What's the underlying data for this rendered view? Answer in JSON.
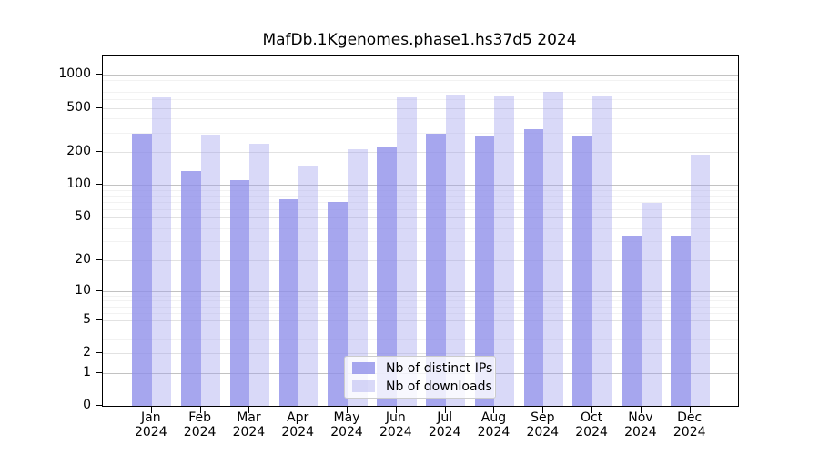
{
  "figure": {
    "background_color": "#ffffff",
    "text_color": "#000000"
  },
  "chart_data": {
    "type": "bar",
    "title": "MafDb.1Kgenomes.phase1.hs37d5 2024",
    "categories": [
      "Jan 2024",
      "Feb 2024",
      "Mar 2024",
      "Apr 2024",
      "May 2024",
      "Jun 2024",
      "Jul 2024",
      "Aug 2024",
      "Sep 2024",
      "Oct 2024",
      "Nov 2024",
      "Dec 2024"
    ],
    "series": [
      {
        "name": "Nb of distinct IPs",
        "color": "#8d8de9",
        "alpha": 0.78,
        "legend_color": "#a6a6ee",
        "values": [
          290,
          134,
          110,
          73,
          70,
          220,
          290,
          283,
          320,
          278,
          34,
          34
        ]
      },
      {
        "name": "Nb of downloads",
        "color": "#a0a0ed",
        "alpha": 0.4,
        "legend_color": "#d9d9f8",
        "values": [
          620,
          285,
          235,
          150,
          210,
          625,
          665,
          655,
          705,
          640,
          68,
          187
        ]
      }
    ],
    "xlabel": "",
    "ylabel": "",
    "yscale": "log1p",
    "yticks": [
      0,
      1,
      2,
      5,
      10,
      20,
      50,
      100,
      200,
      500,
      1000
    ],
    "ylim": [
      0,
      1500
    ],
    "grid": "on",
    "legend_position": "lower center"
  }
}
